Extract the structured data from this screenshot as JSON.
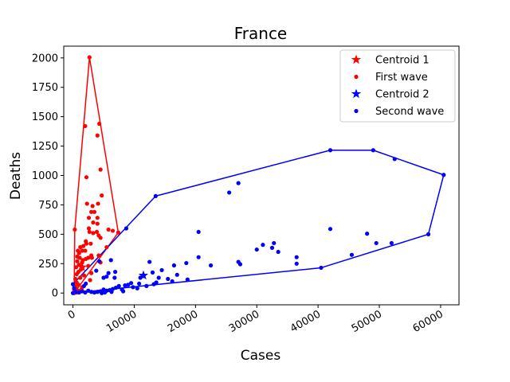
{
  "chart_data": {
    "type": "scatter",
    "title": "France",
    "xlabel": "Cases",
    "ylabel": "Deaths",
    "xlim": [
      -1500,
      63000
    ],
    "ylim": [
      -100,
      2100
    ],
    "xticks": [
      0,
      10000,
      20000,
      30000,
      40000,
      50000,
      60000
    ],
    "xtick_labels": [
      "0",
      "10000",
      "20000",
      "30000",
      "40000",
      "50000",
      "60000"
    ],
    "yticks": [
      0,
      250,
      500,
      750,
      1000,
      1250,
      1500,
      1750,
      2000
    ],
    "ytick_labels": [
      "0",
      "250",
      "500",
      "750",
      "1000",
      "1250",
      "1500",
      "1750",
      "2000"
    ],
    "xtick_rotation": 30,
    "legend_position": "top-right",
    "series": [
      {
        "name": "First wave",
        "color": "#ff0000",
        "marker": "dot",
        "centroid": {
          "name": "Centroid 1",
          "x": 1500,
          "y": 220
        },
        "hull": [
          [
            200,
            0
          ],
          [
            7400,
            515
          ],
          [
            2700,
            2005
          ],
          [
            300,
            540
          ],
          [
            200,
            0
          ]
        ],
        "points": [
          [
            2700,
            2005
          ],
          [
            2000,
            1420
          ],
          [
            4300,
            1440
          ],
          [
            4000,
            1340
          ],
          [
            4500,
            1050
          ],
          [
            2200,
            985
          ],
          [
            4700,
            830
          ],
          [
            2300,
            760
          ],
          [
            3200,
            740
          ],
          [
            4100,
            760
          ],
          [
            3000,
            690
          ],
          [
            3500,
            690
          ],
          [
            2600,
            640
          ],
          [
            4000,
            640
          ],
          [
            3300,
            600
          ],
          [
            4000,
            590
          ],
          [
            2600,
            550
          ],
          [
            2700,
            520
          ],
          [
            3900,
            520
          ],
          [
            3300,
            510
          ],
          [
            4500,
            470
          ],
          [
            4200,
            490
          ],
          [
            5800,
            540
          ],
          [
            6500,
            530
          ],
          [
            7400,
            515
          ],
          [
            300,
            540
          ],
          [
            2100,
            440
          ],
          [
            2200,
            420
          ],
          [
            2900,
            420
          ],
          [
            1700,
            400
          ],
          [
            1200,
            390
          ],
          [
            800,
            360
          ],
          [
            1500,
            360
          ],
          [
            2000,
            360
          ],
          [
            3000,
            320
          ],
          [
            1000,
            340
          ],
          [
            2500,
            300
          ],
          [
            4200,
            320
          ],
          [
            5500,
            390
          ],
          [
            700,
            310
          ],
          [
            1100,
            300
          ],
          [
            1600,
            280
          ],
          [
            2100,
            290
          ],
          [
            3100,
            300
          ],
          [
            700,
            270
          ],
          [
            1500,
            260
          ],
          [
            4500,
            260
          ],
          [
            1000,
            240
          ],
          [
            2500,
            230
          ],
          [
            500,
            220
          ],
          [
            1300,
            200
          ],
          [
            900,
            180
          ],
          [
            3000,
            170
          ],
          [
            600,
            160
          ],
          [
            1800,
            150
          ],
          [
            2800,
            110
          ],
          [
            400,
            120
          ],
          [
            1200,
            130
          ],
          [
            600,
            90
          ],
          [
            900,
            70
          ],
          [
            300,
            60
          ],
          [
            1500,
            50
          ],
          [
            500,
            40
          ],
          [
            200,
            30
          ],
          [
            800,
            20
          ],
          [
            300,
            10
          ],
          [
            200,
            0
          ],
          [
            600,
            5
          ],
          [
            1000,
            15
          ],
          [
            1400,
            30
          ]
        ]
      },
      {
        "name": "Second wave",
        "color": "#0000ff",
        "marker": "dot",
        "centroid": {
          "name": "Centroid 2",
          "x": 11500,
          "y": 150
        },
        "hull": [
          [
            0,
            0
          ],
          [
            40500,
            215
          ],
          [
            58000,
            500
          ],
          [
            60500,
            1005
          ],
          [
            49000,
            1215
          ],
          [
            42000,
            1215
          ],
          [
            13500,
            825
          ],
          [
            0,
            75
          ],
          [
            0,
            0
          ]
        ],
        "points": [
          [
            42000,
            1215
          ],
          [
            49000,
            1215
          ],
          [
            52500,
            1140
          ],
          [
            60500,
            1005
          ],
          [
            27000,
            935
          ],
          [
            25500,
            855
          ],
          [
            13500,
            825
          ],
          [
            8700,
            550
          ],
          [
            20500,
            520
          ],
          [
            42000,
            545
          ],
          [
            48000,
            505
          ],
          [
            58000,
            500
          ],
          [
            31000,
            410
          ],
          [
            30000,
            370
          ],
          [
            32500,
            385
          ],
          [
            33500,
            350
          ],
          [
            32800,
            425
          ],
          [
            52000,
            425
          ],
          [
            49500,
            425
          ],
          [
            36500,
            305
          ],
          [
            45500,
            325
          ],
          [
            36500,
            250
          ],
          [
            27000,
            265
          ],
          [
            27300,
            245
          ],
          [
            22500,
            235
          ],
          [
            20500,
            305
          ],
          [
            40500,
            215
          ],
          [
            18500,
            255
          ],
          [
            16500,
            235
          ],
          [
            12500,
            265
          ],
          [
            14500,
            195
          ],
          [
            14000,
            130
          ],
          [
            13000,
            175
          ],
          [
            15500,
            120
          ],
          [
            16200,
            100
          ],
          [
            17000,
            155
          ],
          [
            18700,
            115
          ],
          [
            11500,
            145
          ],
          [
            11000,
            130
          ],
          [
            10800,
            80
          ],
          [
            9500,
            85
          ],
          [
            9000,
            70
          ],
          [
            8500,
            65
          ],
          [
            9800,
            50
          ],
          [
            10500,
            40
          ],
          [
            12000,
            60
          ],
          [
            13200,
            75
          ],
          [
            13600,
            90
          ],
          [
            7500,
            60
          ],
          [
            7000,
            45
          ],
          [
            6500,
            35
          ],
          [
            6000,
            25
          ],
          [
            5500,
            20
          ],
          [
            5000,
            30
          ],
          [
            4500,
            15
          ],
          [
            4000,
            10
          ],
          [
            3500,
            5
          ],
          [
            3000,
            10
          ],
          [
            2500,
            20
          ],
          [
            2000,
            5
          ],
          [
            1500,
            15
          ],
          [
            1000,
            5
          ],
          [
            500,
            10
          ],
          [
            0,
            0
          ],
          [
            200,
            40
          ],
          [
            0,
            75
          ],
          [
            6900,
            180
          ],
          [
            5800,
            170
          ],
          [
            6200,
            280
          ],
          [
            5000,
            130
          ],
          [
            6800,
            130
          ],
          [
            2100,
            80
          ],
          [
            1800,
            60
          ],
          [
            5500,
            140
          ],
          [
            3800,
            190
          ],
          [
            4300,
            270
          ],
          [
            8000,
            30
          ],
          [
            6300,
            10
          ],
          [
            5200,
            5
          ],
          [
            4700,
            0
          ],
          [
            8200,
            15
          ]
        ]
      }
    ],
    "legend": [
      {
        "label": "Centroid 1",
        "color": "#ff0000",
        "marker": "star"
      },
      {
        "label": "First wave",
        "color": "#ff0000",
        "marker": "dot"
      },
      {
        "label": "Centroid 2",
        "color": "#0000ff",
        "marker": "star"
      },
      {
        "label": "Second wave",
        "color": "#0000ff",
        "marker": "dot"
      }
    ]
  }
}
